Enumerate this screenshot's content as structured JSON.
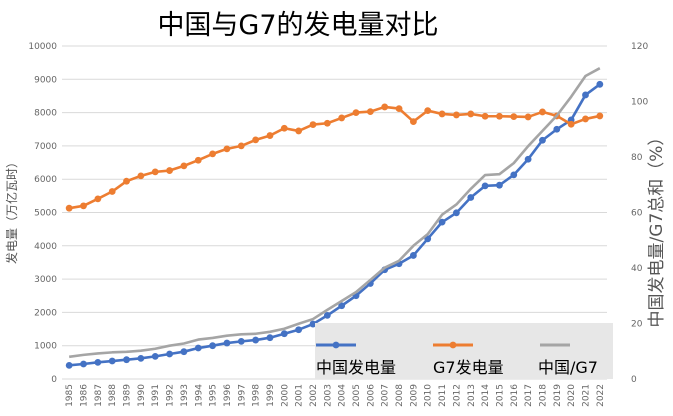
{
  "chart_data": {
    "type": "line",
    "title": "中国与G7的发电量对比",
    "ylabel": "发电量（万亿瓦时）",
    "ylabel_right": "中国发电量/G7总和（%）",
    "ylim": [
      0,
      10000
    ],
    "ylim_right": [
      0,
      120
    ],
    "y_ticks": [
      "0",
      "1000",
      "2000",
      "3000",
      "4000",
      "5000",
      "6000",
      "7000",
      "8000",
      "9000",
      "10000"
    ],
    "y_ticks_right": [
      "0",
      "20",
      "40",
      "60",
      "80",
      "100",
      "120"
    ],
    "categories": [
      "1985",
      "1986",
      "1987",
      "1988",
      "1989",
      "1990",
      "1991",
      "1992",
      "1993",
      "1994",
      "1995",
      "1996",
      "1997",
      "1998",
      "1999",
      "2000",
      "2001",
      "2002",
      "2003",
      "2004",
      "2005",
      "2006",
      "2007",
      "2008",
      "2009",
      "2010",
      "2011",
      "2012",
      "2013",
      "2014",
      "2015",
      "2016",
      "2017",
      "2018",
      "2019",
      "2020",
      "2021",
      "2022"
    ],
    "legend_position": "bottom-right",
    "grid": true,
    "series": [
      {
        "name": "中国发电量",
        "axis": "left",
        "color": "#4472c4",
        "values": [
          410,
          450,
          500,
          540,
          580,
          620,
          680,
          750,
          820,
          930,
          1000,
          1080,
          1130,
          1170,
          1240,
          1360,
          1480,
          1650,
          1910,
          2200,
          2500,
          2870,
          3280,
          3460,
          3710,
          4210,
          4710,
          4990,
          5450,
          5800,
          5820,
          6130,
          6600,
          7170,
          7500,
          7780,
          8530,
          8850
        ]
      },
      {
        "name": "G7发电量",
        "axis": "left",
        "color": "#ed7d31",
        "values": [
          5130,
          5200,
          5410,
          5630,
          5940,
          6100,
          6220,
          6260,
          6400,
          6570,
          6760,
          6910,
          7000,
          7180,
          7310,
          7530,
          7450,
          7640,
          7680,
          7840,
          8000,
          8030,
          8170,
          8120,
          7730,
          8060,
          7960,
          7930,
          7960,
          7890,
          7890,
          7880,
          7870,
          8020,
          7900,
          7650,
          7810,
          7900
        ]
      },
      {
        "name": "中国/G7",
        "axis": "right",
        "color": "#a5a5a5",
        "values": [
          8.0,
          8.7,
          9.2,
          9.6,
          9.8,
          10.2,
          10.9,
          12.0,
          12.8,
          14.2,
          14.8,
          15.6,
          16.1,
          16.3,
          17.0,
          18.1,
          19.9,
          21.6,
          24.9,
          28.1,
          31.3,
          35.7,
          40.1,
          42.6,
          48.0,
          52.2,
          59.2,
          62.9,
          68.5,
          73.5,
          73.8,
          77.8,
          83.9,
          89.4,
          94.9,
          101.7,
          109.2,
          112.0
        ]
      }
    ]
  }
}
